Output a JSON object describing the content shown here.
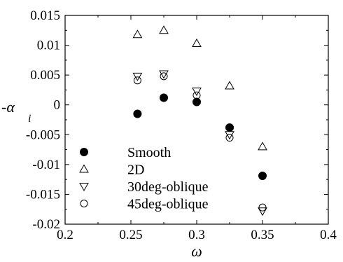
{
  "chart_data": {
    "type": "scatter",
    "title": "",
    "xlabel": "ω",
    "ylabel": {
      "prefix": "-",
      "symbol": "α",
      "subscript": "i"
    },
    "xlim": [
      0.2,
      0.4
    ],
    "ylim": [
      -0.02,
      0.015
    ],
    "x_ticks": [
      0.2,
      0.25,
      0.3,
      0.35,
      0.4
    ],
    "x_tick_labels": [
      "0.2",
      "0.25",
      "0.3",
      "0.35",
      "0.4"
    ],
    "y_ticks": [
      0.015,
      0.01,
      0.005,
      0,
      -0.005,
      -0.01,
      -0.015,
      -0.02
    ],
    "y_tick_labels": [
      "0.015",
      "0.01",
      "0.005",
      "0",
      "-0.005",
      "-0.01",
      "-0.015",
      "-0.02"
    ],
    "grid": false,
    "legend_position": "lower-left",
    "series": [
      {
        "name": "Smooth",
        "marker": "filled-circle",
        "x": [
          0.255,
          0.275,
          0.3,
          0.325,
          0.35
        ],
        "y": [
          -0.0015,
          0.0012,
          0.0005,
          -0.0038,
          -0.0119
        ]
      },
      {
        "name": "2D",
        "marker": "triangle-up",
        "x": [
          0.255,
          0.275,
          0.3,
          0.325,
          0.35
        ],
        "y": [
          0.0118,
          0.0125,
          0.0103,
          0.0032,
          -0.007
        ]
      },
      {
        "name": "30deg-oblique",
        "marker": "triangle-down",
        "x": [
          0.255,
          0.275,
          0.3,
          0.325,
          0.35
        ],
        "y": [
          0.0048,
          0.0052,
          0.0023,
          -0.005,
          -0.0178
        ]
      },
      {
        "name": "45deg-oblique",
        "marker": "open-circle",
        "x": [
          0.255,
          0.275,
          0.3,
          0.325,
          0.35
        ],
        "y": [
          0.0041,
          0.0048,
          0.0016,
          -0.0055,
          -0.0172
        ]
      }
    ]
  }
}
